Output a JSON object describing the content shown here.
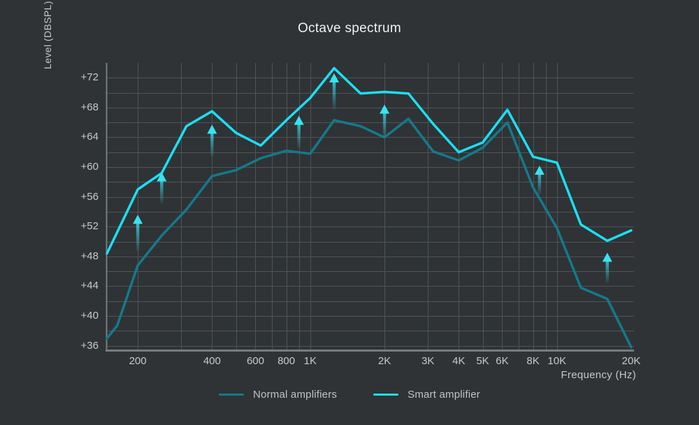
{
  "title": "Octave spectrum",
  "colors": {
    "background": "#2f3335",
    "grid": "#4f5457",
    "axis_line": "#767c7e",
    "tick_text": "#c6cacc",
    "title_text": "#eff2f2",
    "legend_text": "#bfc3c5",
    "normal_line": "#15798b",
    "smart_line": "#1cdef2",
    "arrow": "#38e3f3"
  },
  "chart_data": {
    "type": "line",
    "title": "Octave spectrum",
    "xlabel": "Frequency (Hz)",
    "ylabel": "Level (DBSPL)",
    "x_scale": "log",
    "x_range": [
      150,
      20000
    ],
    "y_range": [
      35.5,
      74
    ],
    "grid": "on",
    "legend_position": "bottom-center",
    "y_gridlines": [
      36,
      38,
      40,
      42,
      44,
      46,
      48,
      50,
      52,
      54,
      56,
      58,
      60,
      62,
      64,
      66,
      68,
      70,
      72
    ],
    "y_ticks": [
      {
        "value": 36,
        "label": "+36"
      },
      {
        "value": 40,
        "label": "+40"
      },
      {
        "value": 44,
        "label": "+44"
      },
      {
        "value": 48,
        "label": "+48"
      },
      {
        "value": 52,
        "label": "+52"
      },
      {
        "value": 56,
        "label": "+56"
      },
      {
        "value": 60,
        "label": "+60"
      },
      {
        "value": 64,
        "label": "+64"
      },
      {
        "value": 68,
        "label": "+68"
      },
      {
        "value": 72,
        "label": "+72"
      }
    ],
    "x_gridlines": [
      200,
      300,
      400,
      500,
      600,
      700,
      800,
      900,
      1000,
      2000,
      3000,
      4000,
      5000,
      6000,
      7000,
      8000,
      9000,
      10000
    ],
    "x_ticks": [
      {
        "value": 200,
        "label": "200"
      },
      {
        "value": 400,
        "label": "400"
      },
      {
        "value": 600,
        "label": "600"
      },
      {
        "value": 800,
        "label": "800"
      },
      {
        "value": 1000,
        "label": "1K"
      },
      {
        "value": 2000,
        "label": "2K"
      },
      {
        "value": 3000,
        "label": "3K"
      },
      {
        "value": 4000,
        "label": "4K"
      },
      {
        "value": 5000,
        "label": "5K"
      },
      {
        "value": 6000,
        "label": "6K"
      },
      {
        "value": 8000,
        "label": "8K"
      },
      {
        "value": 10000,
        "label": "10K"
      },
      {
        "value": 20000,
        "label": "20K"
      }
    ],
    "series": [
      {
        "name": "Normal amplifiers",
        "color": "#15798b",
        "points": [
          [
            150,
            37.0
          ],
          [
            165,
            38.7
          ],
          [
            200,
            46.8
          ],
          [
            250,
            50.8
          ],
          [
            315,
            54.3
          ],
          [
            400,
            58.8
          ],
          [
            500,
            59.6
          ],
          [
            630,
            61.2
          ],
          [
            800,
            62.2
          ],
          [
            1000,
            61.8
          ],
          [
            1250,
            66.3
          ],
          [
            1600,
            65.5
          ],
          [
            2000,
            64.0
          ],
          [
            2500,
            66.5
          ],
          [
            3150,
            62.1
          ],
          [
            4000,
            60.9
          ],
          [
            5000,
            62.6
          ],
          [
            6300,
            66.0
          ],
          [
            8000,
            57.3
          ],
          [
            10000,
            51.8
          ],
          [
            12500,
            43.8
          ],
          [
            16000,
            42.3
          ],
          [
            20000,
            35.8
          ]
        ]
      },
      {
        "name": "Smart amplifier",
        "color": "#1cdef2",
        "points": [
          [
            150,
            48.4
          ],
          [
            200,
            57.0
          ],
          [
            250,
            59.2
          ],
          [
            315,
            65.5
          ],
          [
            400,
            67.5
          ],
          [
            500,
            64.6
          ],
          [
            630,
            62.9
          ],
          [
            800,
            66.3
          ],
          [
            1000,
            69.3
          ],
          [
            1250,
            73.3
          ],
          [
            1600,
            69.9
          ],
          [
            2000,
            70.1
          ],
          [
            2500,
            69.9
          ],
          [
            3150,
            65.8
          ],
          [
            4000,
            62.0
          ],
          [
            5000,
            63.3
          ],
          [
            6300,
            67.7
          ],
          [
            8000,
            61.4
          ],
          [
            10000,
            60.6
          ],
          [
            12500,
            52.3
          ],
          [
            16000,
            50.1
          ],
          [
            20000,
            51.5
          ]
        ]
      }
    ],
    "improvement_arrows": [
      {
        "freq": 200,
        "from": 48.7,
        "to": 53.6
      },
      {
        "freq": 250,
        "from": 55.1,
        "to": 59.3
      },
      {
        "freq": 400,
        "from": 61.4,
        "to": 65.7
      },
      {
        "freq": 900,
        "from": 62.6,
        "to": 66.9
      },
      {
        "freq": 1250,
        "from": 67.7,
        "to": 72.6
      },
      {
        "freq": 2000,
        "from": 64.0,
        "to": 68.4
      },
      {
        "freq": 8500,
        "from": 56.3,
        "to": 60.2
      },
      {
        "freq": 16000,
        "from": 44.4,
        "to": 48.5
      }
    ]
  }
}
